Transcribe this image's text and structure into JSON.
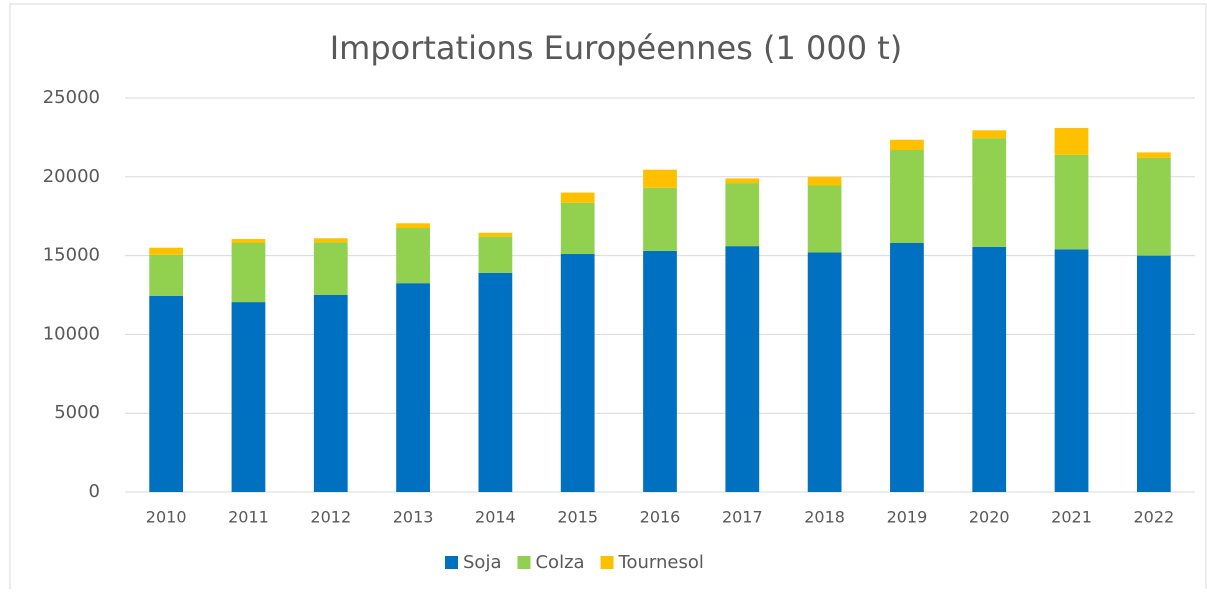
{
  "chart_data": {
    "type": "stacked_bar",
    "title": "Importations Européennes (1 000 t)",
    "categories": [
      "2010",
      "2011",
      "2012",
      "2013",
      "2014",
      "2015",
      "2016",
      "2017",
      "2018",
      "2019",
      "2020",
      "2021",
      "2022"
    ],
    "series": [
      {
        "name": "Soja",
        "color": "#0070c0",
        "values": [
          12450,
          12050,
          12500,
          13250,
          13900,
          15100,
          15300,
          15600,
          15200,
          15800,
          15550,
          15400,
          15000
        ]
      },
      {
        "name": "Colza",
        "color": "#92d050",
        "values": [
          2600,
          3750,
          3350,
          3500,
          2300,
          3250,
          4000,
          4000,
          4250,
          5900,
          6900,
          6000,
          6200
        ]
      },
      {
        "name": "Tournesol",
        "color": "#ffc000",
        "values": [
          450,
          250,
          250,
          300,
          250,
          650,
          1150,
          300,
          550,
          650,
          500,
          1700,
          350
        ]
      }
    ],
    "ylim": [
      0,
      25000
    ],
    "yticks": [
      0,
      5000,
      10000,
      15000,
      20000,
      25000
    ],
    "grid": true,
    "legend": "bottom"
  }
}
